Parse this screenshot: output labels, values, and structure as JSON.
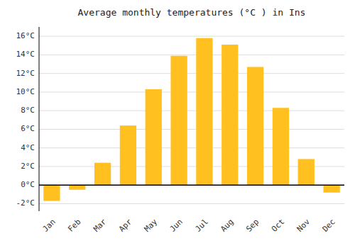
{
  "chart_data": {
    "type": "bar",
    "title": "Average monthly temperatures (°C ) in Ins",
    "categories": [
      "Jan",
      "Feb",
      "Mar",
      "Apr",
      "May",
      "Jun",
      "Jul",
      "Aug",
      "Sep",
      "Oct",
      "Nov",
      "Dec"
    ],
    "values": [
      -1.7,
      -0.5,
      2.4,
      6.4,
      10.3,
      13.9,
      15.8,
      15.1,
      12.7,
      8.3,
      2.8,
      -0.8
    ],
    "color": "#FFC020",
    "ylim": [
      -2.8,
      17.0
    ],
    "yticks": [
      {
        "value": -2,
        "label": "-2°C"
      },
      {
        "value": 0,
        "label": "0°C"
      },
      {
        "value": 2,
        "label": "2°C"
      },
      {
        "value": 4,
        "label": "4°C"
      },
      {
        "value": 6,
        "label": "6°C"
      },
      {
        "value": 8,
        "label": "8°C"
      },
      {
        "value": 10,
        "label": "10°C"
      },
      {
        "value": 12,
        "label": "12°C"
      },
      {
        "value": 14,
        "label": "14°C"
      },
      {
        "value": 16,
        "label": "16°C"
      }
    ],
    "grid": true
  }
}
